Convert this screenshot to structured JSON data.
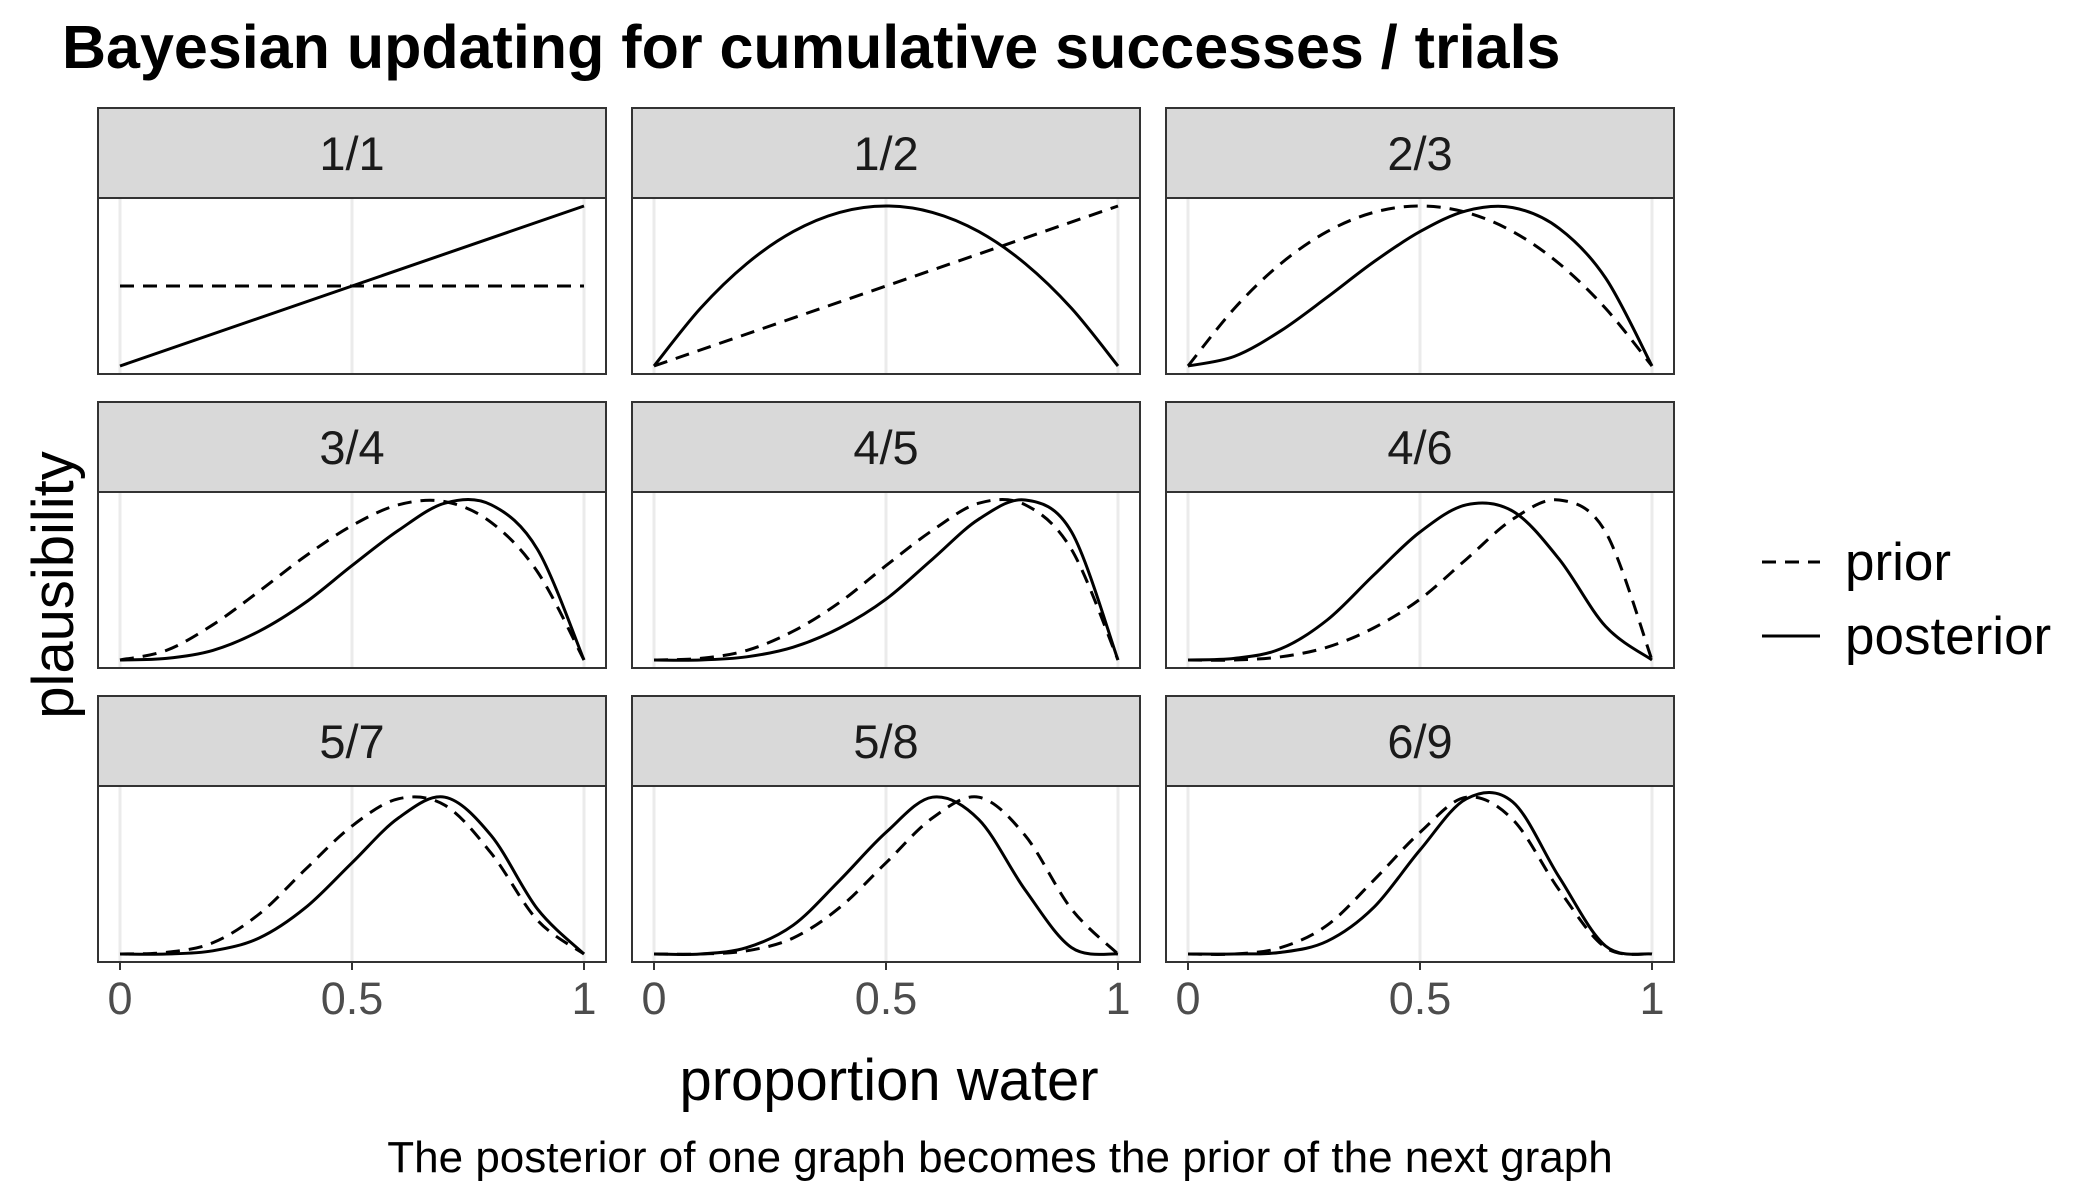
{
  "chart_data": {
    "type": "line",
    "title": "Bayesian updating for cumulative successes / trials",
    "xlabel": "proportion water",
    "ylabel": "plausibility",
    "caption": "The posterior of one graph becomes the prior of the next graph",
    "xlim": [
      0,
      1
    ],
    "x_ticks": [
      {
        "value": 0,
        "label": "0"
      },
      {
        "value": 0.5,
        "label": "0.5"
      },
      {
        "value": 1,
        "label": "1"
      }
    ],
    "y_ticks_shown": false,
    "grid": true,
    "facet_layout": {
      "rows": 3,
      "cols": 3
    },
    "legend": {
      "position": "right",
      "entries": [
        {
          "label": "prior",
          "linetype": "dashed"
        },
        {
          "label": "posterior",
          "linetype": "solid"
        }
      ]
    },
    "line_color": "#000000",
    "strip_fill": "#d9d9d9",
    "panel_border": "#333333",
    "grid_color": "#ebebeb",
    "x": [
      0,
      0.1,
      0.2,
      0.3,
      0.4,
      0.5,
      0.6,
      0.7,
      0.8,
      0.9,
      1
    ],
    "facets": [
      {
        "label": "1/1",
        "successes": 1,
        "trials": 1,
        "series": [
          {
            "name": "prior",
            "values": [
              0.5,
              0.5,
              0.5,
              0.5,
              0.5,
              0.5,
              0.5,
              0.5,
              0.5,
              0.5,
              0.5
            ]
          },
          {
            "name": "posterior",
            "values": [
              0.0,
              0.1,
              0.2,
              0.3,
              0.4,
              0.5,
              0.6,
              0.7,
              0.8,
              0.9,
              1.0
            ]
          }
        ]
      },
      {
        "label": "1/2",
        "successes": 1,
        "trials": 2,
        "series": [
          {
            "name": "prior",
            "values": [
              0.0,
              0.1,
              0.2,
              0.3,
              0.4,
              0.5,
              0.6,
              0.7,
              0.8,
              0.9,
              1.0
            ]
          },
          {
            "name": "posterior",
            "values": [
              0.0,
              0.36,
              0.64,
              0.84,
              0.96,
              1.0,
              0.96,
              0.84,
              0.64,
              0.36,
              0.0
            ]
          }
        ]
      },
      {
        "label": "2/3",
        "successes": 2,
        "trials": 3,
        "series": [
          {
            "name": "prior",
            "values": [
              0.0,
              0.36,
              0.64,
              0.84,
              0.96,
              1.0,
              0.96,
              0.84,
              0.64,
              0.36,
              0.0
            ]
          },
          {
            "name": "posterior",
            "values": [
              0.0,
              0.06,
              0.22,
              0.43,
              0.65,
              0.84,
              0.97,
              0.99,
              0.86,
              0.55,
              0.0
            ]
          }
        ]
      },
      {
        "label": "3/4",
        "successes": 3,
        "trials": 4,
        "series": [
          {
            "name": "prior",
            "values": [
              0.0,
              0.06,
              0.22,
              0.43,
              0.65,
              0.84,
              0.97,
              0.99,
              0.86,
              0.55,
              0.0
            ]
          },
          {
            "name": "posterior",
            "values": [
              0.0,
              0.01,
              0.06,
              0.18,
              0.36,
              0.59,
              0.81,
              0.98,
              0.97,
              0.69,
              0.0
            ]
          }
        ]
      },
      {
        "label": "4/5",
        "successes": 4,
        "trials": 5,
        "series": [
          {
            "name": "prior",
            "values": [
              0.0,
              0.01,
              0.06,
              0.18,
              0.36,
              0.59,
              0.81,
              0.98,
              0.97,
              0.69,
              0.0
            ]
          },
          {
            "name": "posterior",
            "values": [
              0.0,
              0.0,
              0.02,
              0.08,
              0.2,
              0.38,
              0.63,
              0.88,
              1.0,
              0.8,
              0.0
            ]
          }
        ]
      },
      {
        "label": "4/6",
        "successes": 4,
        "trials": 6,
        "series": [
          {
            "name": "prior",
            "values": [
              0.0,
              0.0,
              0.02,
              0.08,
              0.2,
              0.38,
              0.63,
              0.88,
              1.0,
              0.8,
              0.0
            ]
          },
          {
            "name": "posterior",
            "values": [
              0.0,
              0.01,
              0.07,
              0.25,
              0.53,
              0.8,
              0.97,
              0.93,
              0.63,
              0.21,
              0.0
            ]
          }
        ]
      },
      {
        "label": "5/7",
        "successes": 5,
        "trials": 7,
        "series": [
          {
            "name": "prior",
            "values": [
              0.0,
              0.01,
              0.07,
              0.25,
              0.53,
              0.8,
              0.97,
              0.93,
              0.63,
              0.21,
              0.0
            ]
          },
          {
            "name": "posterior",
            "values": [
              0.0,
              0.0,
              0.02,
              0.1,
              0.29,
              0.57,
              0.85,
              0.98,
              0.74,
              0.28,
              0.0
            ]
          }
        ]
      },
      {
        "label": "5/8",
        "successes": 5,
        "trials": 8,
        "series": [
          {
            "name": "prior",
            "values": [
              0.0,
              0.0,
              0.02,
              0.1,
              0.29,
              0.57,
              0.85,
              0.98,
              0.74,
              0.28,
              0.0
            ]
          },
          {
            "name": "posterior",
            "values": [
              0.0,
              0.0,
              0.04,
              0.18,
              0.46,
              0.76,
              0.98,
              0.84,
              0.4,
              0.04,
              0.0
            ]
          }
        ]
      },
      {
        "label": "6/9",
        "successes": 6,
        "trials": 9,
        "series": [
          {
            "name": "prior",
            "values": [
              0.0,
              0.0,
              0.04,
              0.18,
              0.46,
              0.76,
              0.98,
              0.84,
              0.4,
              0.04,
              0.0
            ]
          },
          {
            "name": "posterior",
            "values": [
              0.0,
              0.0,
              0.01,
              0.08,
              0.29,
              0.65,
              0.97,
              0.95,
              0.48,
              0.05,
              0.0
            ]
          }
        ]
      }
    ]
  }
}
